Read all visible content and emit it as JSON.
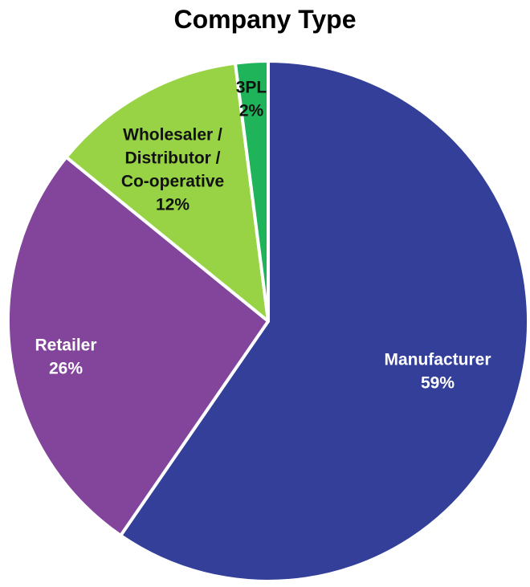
{
  "chart_data": {
    "type": "pie",
    "title": "Company Type",
    "slices": [
      {
        "name": "Manufacturer",
        "label_lines": [
          "Manufacturer"
        ],
        "value": 59,
        "value_label": "59%",
        "color": "#333f99",
        "label_color": "#ffffff"
      },
      {
        "name": "Retailer",
        "label_lines": [
          "Retailer"
        ],
        "value": 26,
        "value_label": "26%",
        "color": "#83449c",
        "label_color": "#ffffff"
      },
      {
        "name": "Wholesaler / Distributor / Co-operative",
        "label_lines": [
          "Wholesaler /",
          "Distributor /",
          "Co-operative"
        ],
        "value": 12,
        "value_label": "12%",
        "color": "#97d345",
        "label_color": "#111111"
      },
      {
        "name": "3PL",
        "label_lines": [
          "3PL"
        ],
        "value": 2,
        "value_label": "2%",
        "color": "#1fb35a",
        "label_color": "#111111"
      }
    ],
    "start": "12 o'clock",
    "direction": "clockwise",
    "legend": "none"
  }
}
